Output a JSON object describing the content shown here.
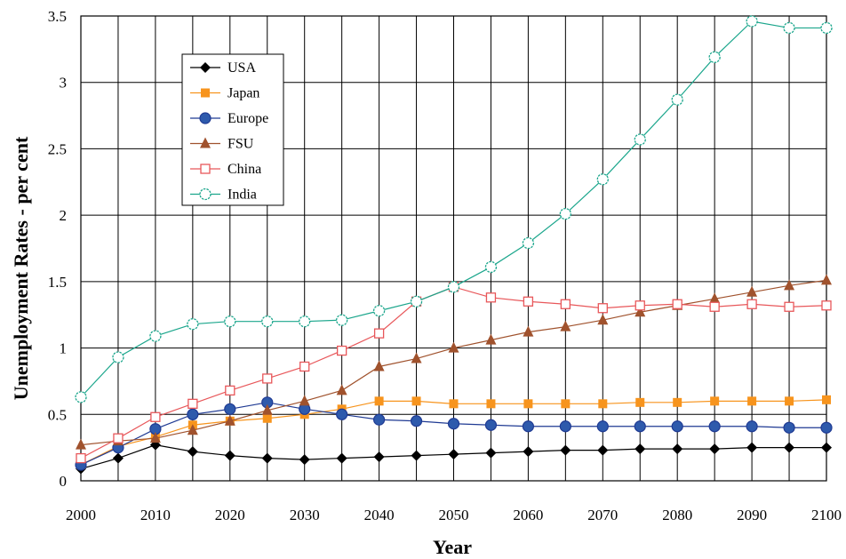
{
  "chart_data": {
    "type": "line",
    "title": "",
    "xlabel": "Year",
    "ylabel": "Unemployment Rates -  per cent",
    "xlim": [
      2000,
      2100
    ],
    "ylim": [
      0,
      3.5
    ],
    "grid": true,
    "legend_position": "top-left",
    "x": [
      2000,
      2005,
      2010,
      2015,
      2020,
      2025,
      2030,
      2035,
      2040,
      2045,
      2050,
      2055,
      2060,
      2065,
      2070,
      2075,
      2080,
      2085,
      2090,
      2095,
      2100
    ],
    "x_ticks": [
      "2000",
      "2010",
      "2020",
      "2030",
      "2040",
      "2050",
      "2060",
      "2070",
      "2080",
      "2090",
      "2100"
    ],
    "y_ticks": [
      "0",
      "0.5",
      "1",
      "1.5",
      "2",
      "2.5",
      "3",
      "3.5"
    ],
    "series": [
      {
        "name": "USA",
        "color": "#000000",
        "line_color": "#000000",
        "marker": "diamond",
        "values": [
          0.09,
          0.17,
          0.27,
          0.22,
          0.19,
          0.17,
          0.16,
          0.17,
          0.18,
          0.19,
          0.2,
          0.21,
          0.22,
          0.23,
          0.23,
          0.24,
          0.24,
          0.24,
          0.25,
          0.25,
          0.25
        ]
      },
      {
        "name": "Japan",
        "color": "#F7941D",
        "line_color": "#F7941D",
        "marker": "square",
        "values": [
          0.12,
          0.26,
          0.33,
          0.42,
          0.45,
          0.47,
          0.5,
          0.54,
          0.6,
          0.6,
          0.58,
          0.58,
          0.58,
          0.58,
          0.58,
          0.59,
          0.59,
          0.6,
          0.6,
          0.6,
          0.61
        ]
      },
      {
        "name": "Europe",
        "color": "#2E5AAC",
        "line_color": "#1F3A93",
        "marker": "circle",
        "values": [
          0.12,
          0.25,
          0.39,
          0.5,
          0.54,
          0.59,
          0.54,
          0.5,
          0.46,
          0.45,
          0.43,
          0.42,
          0.41,
          0.41,
          0.41,
          0.41,
          0.41,
          0.41,
          0.41,
          0.4,
          0.4
        ]
      },
      {
        "name": "FSU",
        "color": "#A0522D",
        "line_color": "#A0522D",
        "marker": "triangle",
        "values": [
          0.27,
          0.3,
          0.32,
          0.38,
          0.45,
          0.53,
          0.6,
          0.68,
          0.86,
          0.92,
          1.0,
          1.06,
          1.12,
          1.16,
          1.21,
          1.27,
          1.32,
          1.37,
          1.42,
          1.47,
          1.51
        ]
      },
      {
        "name": "China",
        "color": "#E8575A",
        "line_color": "#E8575A",
        "marker": "open-square",
        "values": [
          0.17,
          0.32,
          0.48,
          0.58,
          0.68,
          0.77,
          0.86,
          0.98,
          1.11,
          1.35,
          1.46,
          1.38,
          1.35,
          1.33,
          1.3,
          1.32,
          1.33,
          1.31,
          1.33,
          1.31,
          1.32
        ]
      },
      {
        "name": "India",
        "color": "#1BA68C",
        "line_color": "#1BA68C",
        "marker": "open-circle",
        "values": [
          0.63,
          0.93,
          1.09,
          1.18,
          1.2,
          1.2,
          1.2,
          1.21,
          1.28,
          1.35,
          1.46,
          1.61,
          1.79,
          2.01,
          2.27,
          2.57,
          2.87,
          3.19,
          3.46,
          3.41,
          3.41
        ]
      }
    ]
  }
}
